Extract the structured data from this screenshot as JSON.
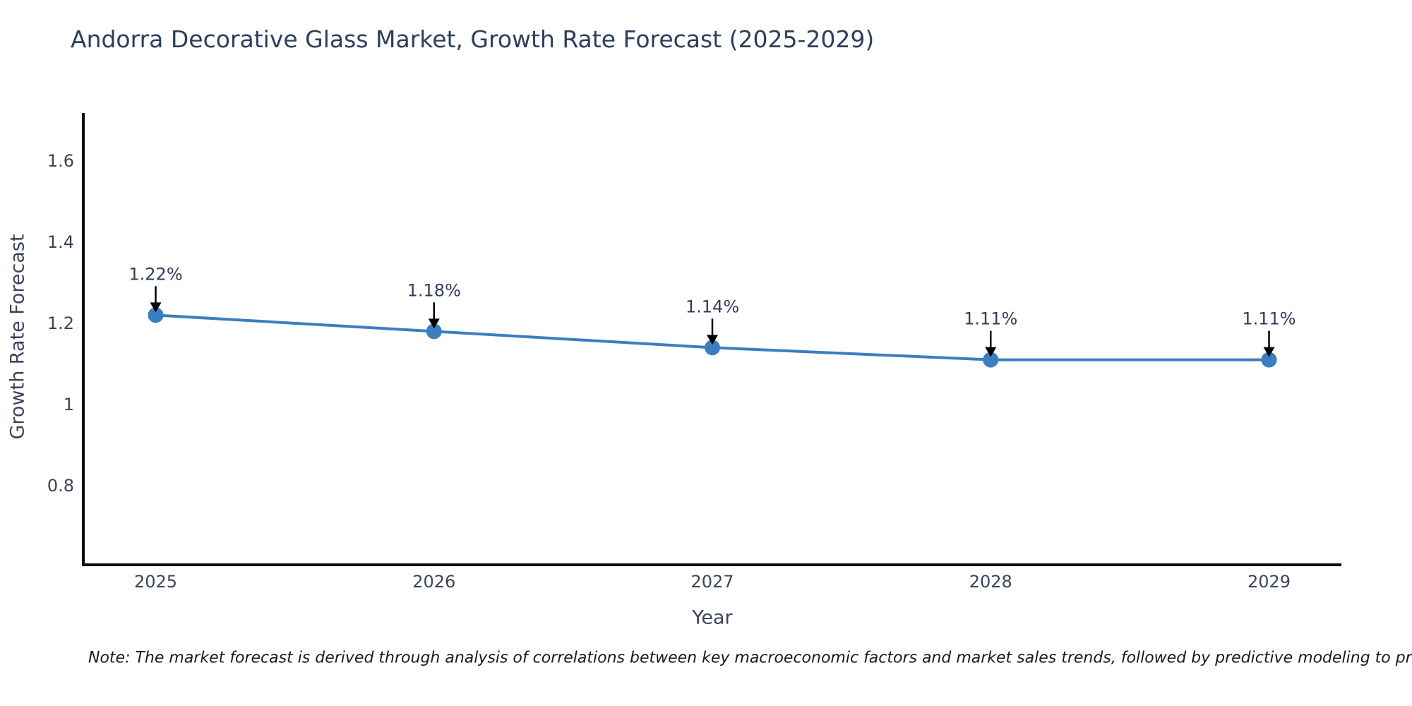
{
  "title": "Andorra Decorative Glass Market, Growth Rate Forecast (2025-2029)",
  "note": "Note: The market forecast is derived through analysis of correlations between key macroeconomic factors and market sales trends, followed by predictive modeling to project future sales",
  "chart_data": {
    "type": "line",
    "title": "Andorra Decorative Glass Market, Growth Rate Forecast (2025-2029)",
    "xlabel": "Year",
    "ylabel": "Growth Rate Forecast",
    "x": [
      2025,
      2026,
      2027,
      2028,
      2029
    ],
    "values": [
      1.22,
      1.18,
      1.14,
      1.11,
      1.11
    ],
    "point_labels": [
      "1.22%",
      "1.18%",
      "1.14%",
      "1.11%",
      "1.11%"
    ],
    "xtick_labels": [
      "2025",
      "2026",
      "2027",
      "2028",
      "2029"
    ],
    "yticks": [
      0.8,
      1,
      1.2,
      1.4,
      1.6
    ],
    "ytick_labels": [
      "0.8",
      "1",
      "1.2",
      "1.4",
      "1.6"
    ],
    "ylim": [
      0.605,
      1.718
    ],
    "xlim": [
      2024.74,
      2029.26
    ],
    "grid": false,
    "legend": null,
    "line_color": "#3c7ebf",
    "marker_color": "#3c7ebf",
    "arrow_color": "#000000",
    "axis_color": "#0d0d0d",
    "tick_color": "#3b4559",
    "title_color": "#2e3e5c"
  }
}
